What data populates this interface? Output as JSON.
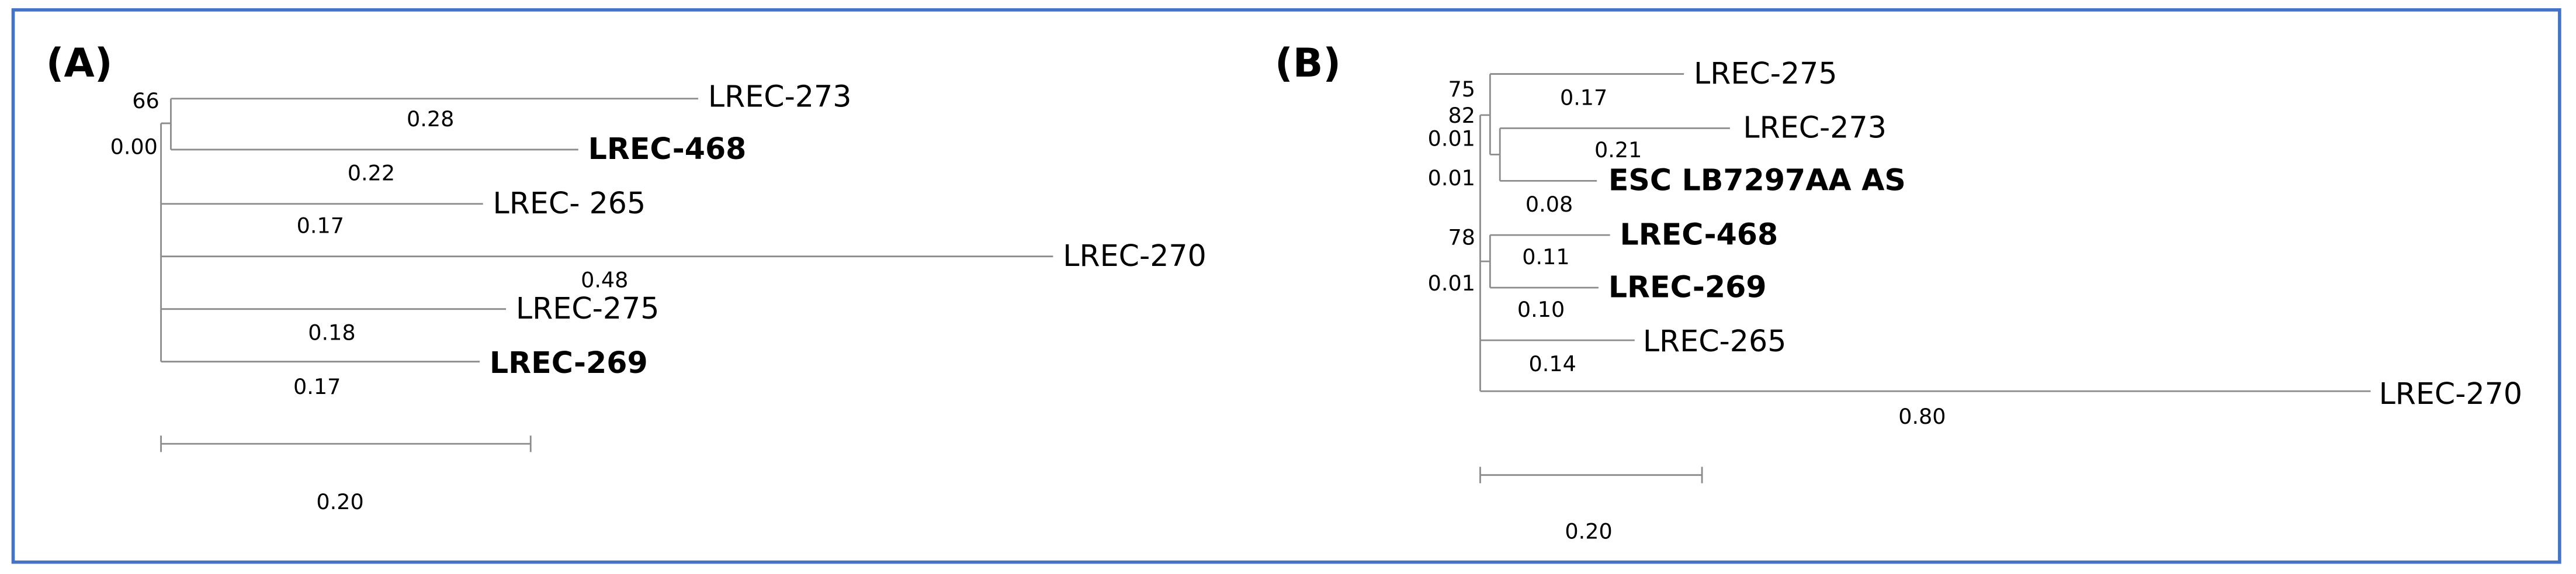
{
  "panels": [
    {
      "label": "(A)",
      "leaves": [
        {
          "name": "LREC-273",
          "color": "#000000",
          "bold": false
        },
        {
          "name": "LREC-468",
          "color": "#c00000",
          "bold": true
        },
        {
          "name": "LREC- 265",
          "color": "#000000",
          "bold": false
        },
        {
          "name": "LREC-270",
          "color": "#000000",
          "bold": false
        },
        {
          "name": "LREC-275",
          "color": "#000000",
          "bold": false
        },
        {
          "name": "LREC-269",
          "color": "#000000",
          "bold": true
        }
      ],
      "branch_lengths": [
        "0.28",
        "0.22",
        "0.17",
        "0.48",
        "0.18",
        "0.17"
      ],
      "node_labels": [
        "66",
        "0.00"
      ],
      "scale_label": "0.20"
    },
    {
      "label": "(B)",
      "leaves": [
        {
          "name": "LREC-275",
          "color": "#000000",
          "bold": false
        },
        {
          "name": "LREC-273",
          "color": "#000000",
          "bold": false
        },
        {
          "name": "ESC LB7297AA AS",
          "color": "#5b9bd5",
          "bold": true
        },
        {
          "name": "LREC-468",
          "color": "#c00000",
          "bold": true
        },
        {
          "name": "LREC-269",
          "color": "#000000",
          "bold": true
        },
        {
          "name": "LREC-265",
          "color": "#000000",
          "bold": false
        },
        {
          "name": "LREC-270",
          "color": "#000000",
          "bold": false
        }
      ],
      "branch_lengths": [
        "0.17",
        "0.21",
        "0.08",
        "0.11",
        "0.10",
        "0.14",
        "0.80"
      ],
      "node_labels": [
        "75",
        "82",
        "0.01",
        "0.01",
        "78",
        "0.01"
      ],
      "scale_label": "0.20"
    }
  ]
}
